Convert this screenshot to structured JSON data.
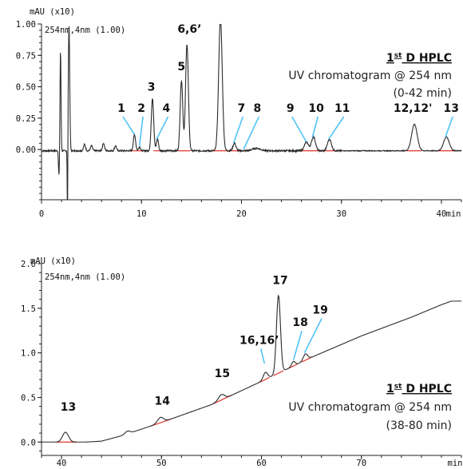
{
  "chart_data": [
    {
      "type": "line",
      "unit_label": "mAU (x10)",
      "detector_label": "254nm,4nm (1.00)",
      "x_unit": "min",
      "xlim": [
        0,
        42
      ],
      "ylim": [
        -0.4,
        1.0
      ],
      "xticks": [
        0,
        10,
        20,
        30,
        40
      ],
      "yticks": [
        1.0,
        0.75,
        0.5,
        0.25,
        0.0
      ],
      "ytick_labels": [
        "1.00",
        "0.75",
        "0.50",
        "0.25",
        "0.00"
      ],
      "info": {
        "title_prefix": "1",
        "title_sup": "st",
        "title_rest": " D HPLC",
        "line2": "UV chromatogram @ 254 nm",
        "line3": "(0-42 min)"
      },
      "baseline": [
        [
          0,
          -0.01
        ],
        [
          42,
          -0.01
        ]
      ],
      "integration_ranges": [
        [
          9.0,
          10.2
        ],
        [
          11.2,
          12.2
        ],
        [
          13.6,
          14.9
        ],
        [
          17.0,
          19.0
        ],
        [
          19.0,
          20.5
        ],
        [
          26.0,
          30.0
        ],
        [
          36.5,
          38.0
        ],
        [
          39.5,
          41.5
        ]
      ],
      "peaks": [
        {
          "t": 1.9,
          "h": 0.8,
          "w": 0.05
        },
        {
          "t": 2.75,
          "h": 1.0,
          "w": 0.07
        },
        {
          "t": 4.3,
          "h": 0.05,
          "w": 0.1
        },
        {
          "t": 5.0,
          "h": 0.04,
          "w": 0.1
        },
        {
          "t": 6.2,
          "h": 0.06,
          "w": 0.1
        },
        {
          "t": 7.4,
          "h": 0.04,
          "w": 0.1
        },
        {
          "t": 9.3,
          "h": 0.13,
          "w": 0.11
        },
        {
          "t": 9.8,
          "h": 0.03,
          "w": 0.1
        },
        {
          "t": 11.1,
          "h": 0.42,
          "w": 0.12
        },
        {
          "t": 11.6,
          "h": 0.1,
          "w": 0.1
        },
        {
          "t": 14.0,
          "h": 0.56,
          "w": 0.13
        },
        {
          "t": 14.55,
          "h": 0.85,
          "w": 0.14
        },
        {
          "t": 17.9,
          "h": 1.05,
          "w": 0.18
        },
        {
          "t": 19.3,
          "h": 0.06,
          "w": 0.15
        },
        {
          "t": 21.5,
          "h": 0.02,
          "w": 0.4
        },
        {
          "t": 26.5,
          "h": 0.07,
          "w": 0.2
        },
        {
          "t": 27.2,
          "h": 0.11,
          "w": 0.2
        },
        {
          "t": 28.8,
          "h": 0.09,
          "w": 0.2
        },
        {
          "t": 37.3,
          "h": 0.21,
          "w": 0.28
        },
        {
          "t": 40.5,
          "h": 0.11,
          "w": 0.28
        }
      ],
      "peak_labels": [
        {
          "text": "1",
          "x": 7.6,
          "y": 0.3,
          "lx": 9.3,
          "ly": 0.12
        },
        {
          "text": "2",
          "x": 9.6,
          "y": 0.3,
          "lx": 9.8,
          "ly": 0.03
        },
        {
          "text": "3",
          "x": 10.6,
          "y": 0.47,
          "lx": null,
          "ly": null
        },
        {
          "text": "4",
          "x": 12.1,
          "y": 0.3,
          "lx": 11.5,
          "ly": 0.08
        },
        {
          "text": "5",
          "x": 13.6,
          "y": 0.63,
          "lx": null,
          "ly": null
        },
        {
          "text": "6,6’",
          "x": 13.6,
          "y": 0.93,
          "lx": null,
          "ly": null
        },
        {
          "text": "7",
          "x": 19.6,
          "y": 0.3,
          "lx": 19.2,
          "ly": 0.05
        },
        {
          "text": "8",
          "x": 21.2,
          "y": 0.3,
          "lx": 20.2,
          "ly": 0.0
        },
        {
          "text": "9",
          "x": 24.5,
          "y": 0.3,
          "lx": 26.5,
          "ly": 0.06
        },
        {
          "text": "10",
          "x": 26.7,
          "y": 0.3,
          "lx": 27.1,
          "ly": 0.1
        },
        {
          "text": "11",
          "x": 29.3,
          "y": 0.3,
          "lx": 28.7,
          "ly": 0.08
        },
        {
          "text": "12,12'",
          "x": 35.2,
          "y": 0.3,
          "lx": null,
          "ly": null
        },
        {
          "text": "13",
          "x": 40.2,
          "y": 0.3,
          "lx": 40.4,
          "ly": 0.1
        }
      ]
    },
    {
      "type": "line",
      "unit_label": "mAU (x10)",
      "detector_label": "254nm,4nm (1.00)",
      "x_unit": "min",
      "xlim": [
        38,
        80
      ],
      "ylim": [
        -0.15,
        2.0
      ],
      "xticks": [
        40,
        50,
        60,
        70
      ],
      "yticks": [
        2.0,
        1.5,
        1.0,
        0.5,
        0.0
      ],
      "ytick_labels": [
        "2.0",
        "1.5",
        "1.0",
        "0.5",
        "0.0"
      ],
      "info": {
        "title_prefix": "1",
        "title_sup": "st",
        "title_rest": " D HPLC",
        "line2": "UV chromatogram @ 254 nm",
        "line3": "(38-80 min)"
      },
      "baseline": [
        [
          38,
          0.0
        ],
        [
          42.5,
          0.0
        ],
        [
          44,
          0.01
        ],
        [
          46,
          0.07
        ],
        [
          50,
          0.22
        ],
        [
          55,
          0.42
        ],
        [
          60,
          0.68
        ],
        [
          65,
          0.95
        ],
        [
          70,
          1.19
        ],
        [
          75,
          1.4
        ],
        [
          78,
          1.54
        ],
        [
          79,
          1.58
        ],
        [
          80,
          1.58
        ]
      ],
      "integration_ranges": [
        [
          39.5,
          41.5
        ],
        [
          49,
          51
        ],
        [
          55.2,
          57
        ],
        [
          59.8,
          60.8
        ],
        [
          61.2,
          62.2
        ],
        [
          62.7,
          63.6
        ],
        [
          64,
          65
        ]
      ],
      "peaks": [
        {
          "t": 40.4,
          "h": 0.11,
          "w": 0.3
        },
        {
          "t": 46.6,
          "h": 0.03,
          "w": 0.25
        },
        {
          "t": 49.9,
          "h": 0.06,
          "w": 0.3
        },
        {
          "t": 56.0,
          "h": 0.06,
          "w": 0.3
        },
        {
          "t": 60.4,
          "h": 0.08,
          "w": 0.22
        },
        {
          "t": 61.7,
          "h": 0.87,
          "w": 0.2
        },
        {
          "t": 63.2,
          "h": 0.05,
          "w": 0.18
        },
        {
          "t": 64.4,
          "h": 0.07,
          "w": 0.22
        }
      ],
      "peak_labels": [
        {
          "text": "13",
          "x": 39.9,
          "y": 0.35,
          "lx": null,
          "ly": null
        },
        {
          "text": "14",
          "x": 49.3,
          "y": 0.42,
          "lx": null,
          "ly": null
        },
        {
          "text": "15",
          "x": 55.3,
          "y": 0.73,
          "lx": null,
          "ly": null
        },
        {
          "text": "16,16’",
          "x": 57.8,
          "y": 1.1,
          "lx": 60.3,
          "ly": 0.88
        },
        {
          "text": "17",
          "x": 61.1,
          "y": 1.77,
          "lx": null,
          "ly": null
        },
        {
          "text": "18",
          "x": 63.1,
          "y": 1.3,
          "lx": 63.2,
          "ly": 0.92
        },
        {
          "text": "19",
          "x": 65.1,
          "y": 1.44,
          "lx": 64.3,
          "ly": 1.0
        }
      ]
    }
  ]
}
